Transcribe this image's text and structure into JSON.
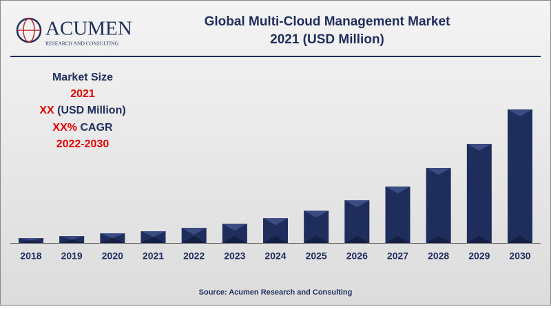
{
  "chart_data": {
    "type": "bar",
    "title": [
      "Global Multi-Cloud Management Market",
      "2021 (USD Million)"
    ],
    "logo": {
      "name": "ACUMEN",
      "tagline": "RESEARCH AND CONSULTING"
    },
    "market_box": {
      "heading": "Market Size",
      "year": "2021",
      "size_value": "XX",
      "size_unit": "(USD Million)",
      "cagr_value": "XX%",
      "cagr_label": "CAGR",
      "period": "2022-2030"
    },
    "source": "Source: Acumen Research and Consulting",
    "categories": [
      "2018",
      "2019",
      "2020",
      "2021",
      "2022",
      "2023",
      "2024",
      "2025",
      "2026",
      "2027",
      "2028",
      "2029",
      "2030"
    ],
    "values": [
      7,
      10,
      14,
      17,
      22,
      28,
      36,
      47,
      62,
      82,
      109,
      144,
      194
    ],
    "color": "#1f2d5c"
  }
}
